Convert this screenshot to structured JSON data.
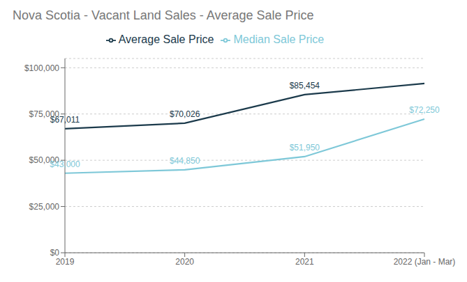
{
  "chart_data": {
    "type": "line",
    "title": "Nova Scotia - Vacant Land Sales - Average Sale Price",
    "categories": [
      "2019",
      "2020",
      "2021",
      "2022 (Jan - Mar)"
    ],
    "series": [
      {
        "name": "Median Sale Price",
        "color": "#7ec8d8",
        "values": [
          43000,
          44850,
          51950,
          72250
        ],
        "value_labels": [
          "$43,000",
          "$44,850",
          "$51,950",
          "$72,250"
        ]
      },
      {
        "name": "Average Sale Price",
        "color": "#1b3a4b",
        "values": [
          67011,
          70026,
          85454,
          91500
        ],
        "value_labels": [
          "$67,011",
          "$70,026",
          "$85,454",
          null
        ]
      }
    ],
    "ylim": [
      0,
      105000
    ],
    "yticks": [
      {
        "value": 0,
        "label": "$0"
      },
      {
        "value": 25000,
        "label": "$25,000"
      },
      {
        "value": 50000,
        "label": "$50,000"
      },
      {
        "value": 75000,
        "label": "$75,000"
      },
      {
        "value": 100000,
        "label": "$100,000"
      }
    ],
    "grid": true,
    "legend": "top",
    "data_labels": true
  }
}
